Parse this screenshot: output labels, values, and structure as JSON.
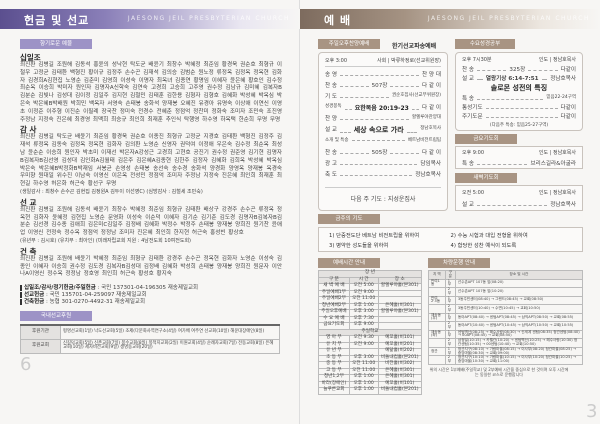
{
  "left": {
    "title": "헌금 및 선교",
    "church": "JAESONG JEIL PRESBYTERIAN CHURCH",
    "section_label": "향기로운 예물",
    "groups": [
      {
        "heading": "십일조",
        "names": "최진환 김병길 조원해 김동석 홍윤의 성낙현 탁도균 배윤기 최창수 박혜정 최준임 황경욱 권순호 최형규 이철우 고정균 김태환 백형진 황이규 김정주 손수곤 김재석 김의승 김범순 원노정 류정옥 김정옥 정옥현 김화자 김경희A김현집 노영순 김춘미 김영희 이성숙 이명자 최옥녀 김종연 황명임 이혜자 윤은혜 황호인 김수정 최순옥 이승희 박미자 원인자 김명자A신학숙 김연숙 고경희 고승희 고주영 권수정 김남규 김미혜 김복자B김분순 김빛나 김성대 김이정 김일주 김지현 김철민 김태훈 김한용 김형자 김형호 김혜화 박성혜 박옥심 박은숙 박은혜B박배원 박희민 백옥자 서영숙 손태봉 송화석 양재봉 오혜진 유경아 유명숙 이상애 이연신 이영초 이정준 이주형 이진순 이필례 장국찬 정미숙 전경수 전혜춘 정점억 정찬미 정화숙 조미자 조민숙 조진영 주정남 지정숙 진은혜 최경영 최맥희 최승규 최인희 최재훈 추인식 탁행영 하수영 하옥택 한순희 무명 무명"
      },
      {
        "heading": "감 사",
        "names": "최진환 김병길 탁도균 배윤기 최준임 황경욱 권순호 이종진 최형규 고정균 지경호 김태환 백형진 김정주 김재석 류정옥 김동숙 김정옥 정옥현 김화자 김의환 노영순 신영자 권덕여 이정애 우은숙 김수정 최순옥 최성남 윤순순 이승희 원인자 박초미 이재선 박은자A강성근 고경희 고현호 공진기 권수정 권준영 김기현 김명자B김복자B김선영 김성대 김인화A김월태 김은주 김은혜A김종현 김한주 김정자 김혜화 김희옥 박성혜 박옥심 박은숙 박은혜B박정화B박재임 서봉균 손영성 손태봉 송선숙 송수경 송화석 양경화 양영옥 양재봉 옥경숙 우미향 원대일 위수진 이남숙 이영신 이은옥 전성민 정점억 조미자 주정남 지정숙 진은혜 최인희 최재훈 최현길 하수영 허은화 허근숙 황선구 무명",
        "note": "(생일감사 : 최창수 손수곤 김현집 김정원A 김두이 이선영C) (심방감사 : 김철세 조민숙)"
      },
      {
        "heading": "선 교",
        "names": "최진환 김병길 조원해 김동석 배윤기 최창수 박혜정 최준임 최형규 김태환 배상구 강경주 손수곤 류정옥 정옥현 김화자 윤혜정 김현집 노영순 문영화 이성숙 이순덕 이혜자 김기순 김기춘 김도경 김명자B김복자B김분순 김선경 김수종 김애희 김은미C김일주 김정배 김혜화 박정수 박정주 손태봉 양재봉 양희진 원기찬 윤애업 이영신 전정숙 정수옥 정점억 정정남 조미자 진은혜 최인희 한지현 허근숙 홍성빈 황상호",
        "note": "(유년부 : 김시호) (유치부 : 최아인) (미래자립교회 지원 : 4남전도회 10여전도회)"
      },
      {
        "heading": "건 축",
        "names": "최진환 김병길 조원해 배윤기 박혜정 최준임 최형규 김태환 강경주 손수곤 정옥현 김화자 노영순 이성숙 김종인 이혜자 이승희 권수정 김도경 김복자B김성대 김정배 김혜화 박성희 손태봉 양재봉 양희진 원문자 이안나A이영신 정수옥 정정남 정호영 최인희 허근숙 황성호 황지숙"
      }
    ],
    "accounts": [
      {
        "label": "십일조/감사/정기헌금/주일헌금",
        "value": "국민 137301-04-196305 재송제일교회"
      },
      {
        "label": "선교헌금",
        "value": "국민 135701-04-259097 재송제일교회"
      },
      {
        "label": "건축헌금",
        "value": "농협 301-0270-4492-31 재송제일교회"
      }
    ],
    "support_label": "국내선교후원",
    "support": [
      {
        "type": "후원기관",
        "text": "평명선교회(1일) 낙도선교회(5일) 조제(다문화사역연구소(4일) 여가배 여주연 선교회(10일) 해운대장애인(8일)"
      },
      {
        "type": "후원교회",
        "text": "신길덕교회(5일) 신촌교회(7일) 봉수교회(8일) 목적지교회(2일) 이원교회(4일) 순례자교회(7일) 전동교회(8일) 은혜교회(10일) 제자비전교회(9일) 생명동교회(20일)"
      }
    ],
    "page": "6"
  },
  "right": {
    "title": "예 배",
    "church": "JAESONG JEIL PRESBYTERIAN CHURCH",
    "sunday": {
      "label": "주일오후찬양예배",
      "sub": "한기선교파송예배",
      "time": "오후 3:00",
      "leader": "사회 | 박류하정로(선교위원장)",
      "items": [
        [
          "송 영",
          "찬 양 대"
        ],
        [
          "찬 송",
          "507장",
          "다 같 이"
        ],
        [
          "기 도",
          "권순호집사(선교부위원장)"
        ],
        [
          "성경봉독",
          "요한복음 20:19-23",
          "다 같 이"
        ],
        [
          "찬 양",
          "할렐루야찬양대"
        ],
        [
          "설 교",
          "세상 속으로 가라",
          "정남호목사"
        ],
        [
          "소개 및 특송",
          "베트남비전트립팀"
        ],
        [
          "찬 송",
          "505장",
          "다 같 이"
        ],
        [
          "광 고",
          "담임목사"
        ],
        [
          "축 도",
          "정남호목사"
        ]
      ],
      "next": "다음 주 기도 : 지성운집사"
    },
    "wed": {
      "label": "수요성경공부",
      "time": "오후 7시30분",
      "leader": "인도 | 정남호목사",
      "items": [
        [
          "찬 송",
          "325장",
          "다같이"
        ],
        [
          "설 교",
          "열왕기상 6:14-7:51",
          "정남호목사"
        ],
        [
          "특 송",
          "믿음22-24구역"
        ],
        [
          "통성기도",
          "다같이"
        ],
        [
          "주기도문",
          "다같이"
        ]
      ],
      "sermon": "솔로몬 성전의 특징",
      "next": "(다음주 특송: 믿음25-27구역)"
    },
    "fri": {
      "label": "금요기도회",
      "time": "오후 9:00",
      "leader": "인도 | 정남호목사",
      "items": [
        [
          "특 송",
          "브리스길라&아굴라"
        ]
      ]
    },
    "dawn": {
      "label": "새벽기도회",
      "time": "오전 5:00",
      "leader": "인도 | 정남호목사",
      "items": [
        [
          "설 교",
          "정남호목사"
        ]
      ]
    },
    "prayer": {
      "label": "금주의 기도",
      "items": [
        "1) 단중전도단 베트남 비전트립을 위하여",
        "2) 수능 시험과 대입 전형을 위하여",
        "3) 병약한 성도들을 위하여",
        "4) 합당한 성찬 예식이 되도록"
      ]
    },
    "times": {
      "label": "예배시간 안내",
      "adult": "장 년",
      "headers": [
        "구 분",
        "시 간",
        "장 소"
      ],
      "rows": [
        [
          "새 벽 예 배",
          "오전 5:00",
          "할렐루야홀(본301)"
        ],
        [
          "주일예배1부",
          "오전 9:00",
          ""
        ],
        [
          "주일예배2부",
          "오전 11:00",
          ""
        ],
        [
          "청년예배2부",
          "오후 1:00",
          "은혜홀(비301)"
        ],
        [
          "주일오후예배",
          "오후 3:00",
          "할렐루야홀(본301)"
        ],
        [
          "수 요 예 배",
          "오후 7:30",
          ""
        ],
        [
          "금요기도회",
          "오후 9:00",
          ""
        ]
      ],
      "school": "주일학교",
      "srows": [
        [
          "영 아 부",
          "오전 9:30",
          "예꼬홀(비101)"
        ],
        [
          "유 치 부",
          "오전 9:00",
          "예꼬홀(비201)"
        ],
        [
          "유 년 부",
          "",
          "예닮홀(비202)"
        ],
        [
          "초 등 부",
          "오후 3:00",
          "비돌내컴홀(본201)"
        ],
        [
          "중 등 부",
          "오전 11:00",
          "비전홀(비302)"
        ],
        [
          "고 등 부",
          "오전 11:00",
          "은혜홀(비301)"
        ],
        [
          "청년1,2부",
          "오후 1:00",
          "은혜홀(비301)"
        ],
        [
          "바라(장애인)",
          "오후 1:00",
          "예꼬홀(비101)"
        ],
        [
          "늘푸른교회",
          "오후 1:00",
          "비돌내컴홀(본201)"
        ]
      ]
    },
    "bus": {
      "label": "차량운행 안내",
      "headers": [
        "지 역",
        "구분",
        "장소 및 시간"
      ],
      "rows": [
        [
          "반여1동",
          "1부",
          "선수촌APT 107동 앞(08:20)"
        ],
        [
          "",
          "2부",
          "선수촌APT 107동 앞(10:20)"
        ],
        [
          "반여2·3동",
          "1부",
          "3동주민센터(08:40) → 그랜드(08:45) → 교회(08:50)"
        ],
        [
          "",
          "2부",
          "3동주민센터(10:40) → 수변(10:45) → 교회(10:50)"
        ],
        [
          "재송동(우)",
          "1부",
          "동아APT(08:40) → 센텀APT(08:45) → 삼익APT(08:50) → 교회(08:55)"
        ],
        [
          "",
          "2부",
          "동아APT(10:40) → 센텀APT(10:45) → 삼익APT(10:50) → 교회(10:55)"
        ],
        [
          "재송동(좌)",
          "1부",
          "센텀벽산(08:25) → 해수사랑(08:30) → 신세계 센텀(08:35) 정관센텀(08:40) → 00APT(08:45) → 교회(08:50)"
        ],
        [
          "",
          "2부",
          "삼정빌(10:15) → 카펠관(10:20) → 센텀벽산(10:25) → 해수사랑(10:30) 정관센텀(10:35) → 00센텀(10:40) → 교회(10:50)"
        ],
        [
          "정관",
          "1부",
          "정관지구(08:10) → 가람마을(08:15) → 이사부(08:20) 정관마을(08:25) → 중앙마을(08:30) → 교회(09:00)"
        ],
        [
          "",
          "2부",
          "정관지구(10:10) → 가람마을(10:15) → 이사부(10:20) 정관마을(10:25) → 중앙마을(10:30) → 교회(11:00)"
        ]
      ],
      "note": "위의 시간은 1부예배(주일학교) 및 2부예배 시간을 중심으로 한 것이며 오후 시간에는 동일한 코스로 운행합니다"
    },
    "page": "3"
  }
}
